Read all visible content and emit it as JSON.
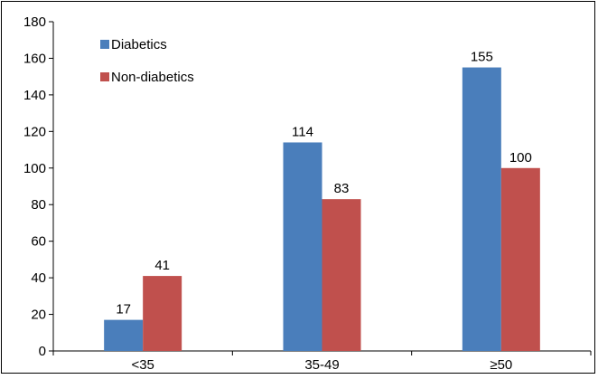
{
  "chart_data": {
    "type": "bar",
    "title": "",
    "xlabel": "",
    "ylabel": "",
    "categories": [
      "<35",
      "35-49",
      "≥50"
    ],
    "series": [
      {
        "name": "Diabetics",
        "values": [
          17,
          114,
          155
        ],
        "color": "#4a7ebb"
      },
      {
        "name": "Non-diabetics",
        "values": [
          41,
          83,
          100
        ],
        "color": "#c0504d"
      }
    ],
    "ylim": [
      0,
      180
    ],
    "yticks": [
      0,
      20,
      40,
      60,
      80,
      100,
      120,
      140,
      160,
      180
    ],
    "grid": false,
    "legend": "top-left (inside plot)"
  }
}
